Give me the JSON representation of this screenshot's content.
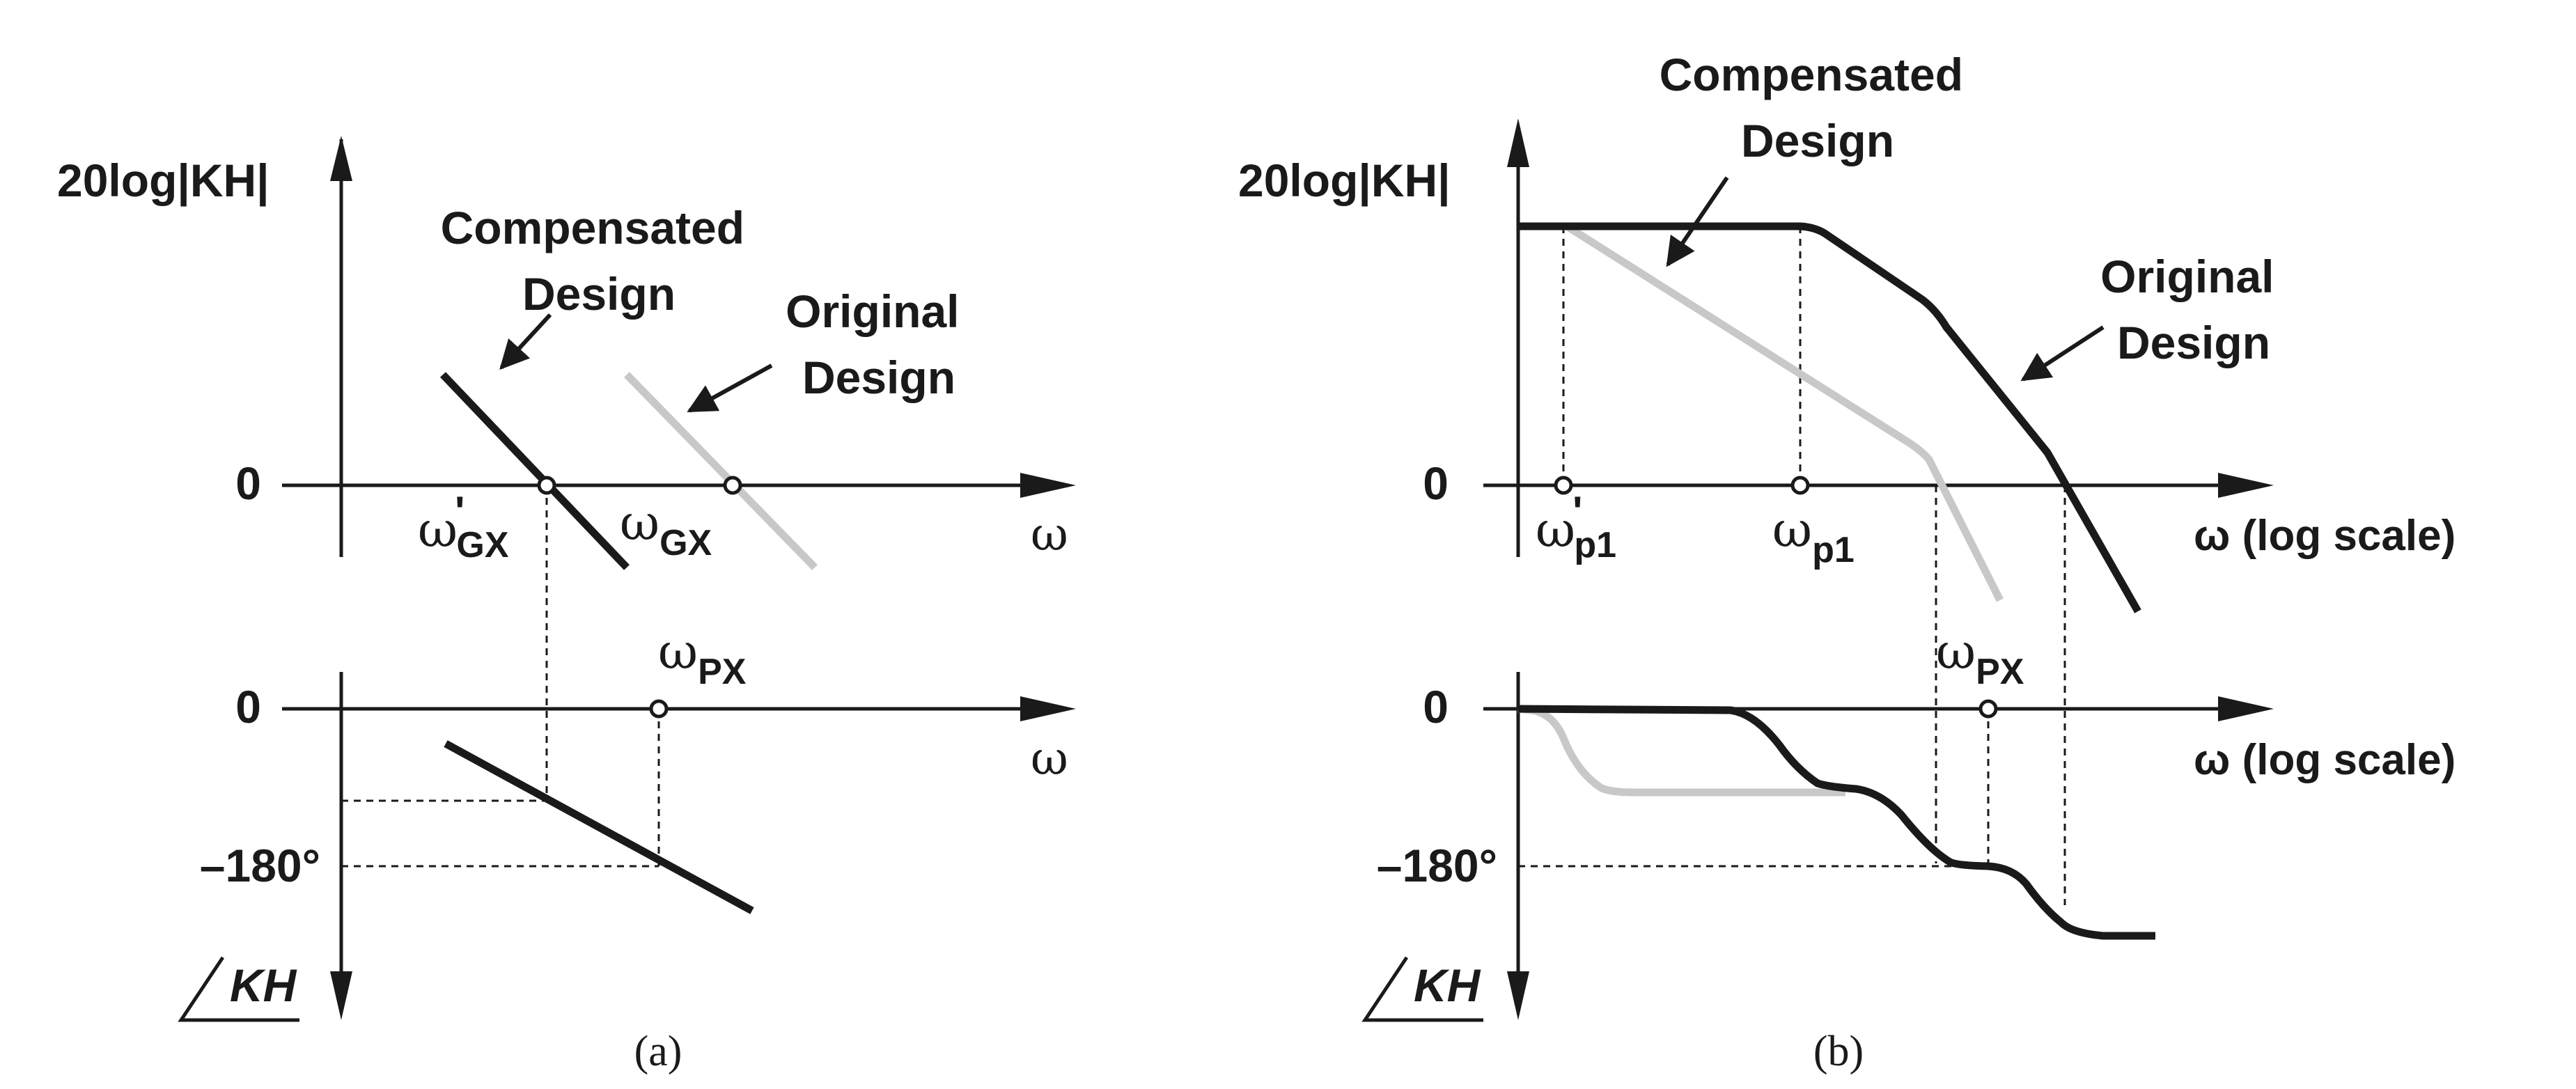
{
  "panel_a": {
    "caption": "(a)",
    "magnitude_ylabel": "20log|KH|",
    "phase_ylabel": "KH",
    "zero_mag": "0",
    "zero_phase": "0",
    "phase_tick": "–180°",
    "x_symbol_top": "ω",
    "x_symbol_bottom": "ω",
    "compensated_label": [
      "Compensated",
      "Design"
    ],
    "original_label": [
      "Original",
      "Design"
    ],
    "wgx_prime": {
      "base": "ω",
      "prime": "'",
      "sub": "GX"
    },
    "wgx": {
      "base": "ω",
      "sub": "GX"
    },
    "wpx": {
      "base": "ω",
      "sub": "PX"
    }
  },
  "panel_b": {
    "caption": "(b)",
    "magnitude_ylabel": "20log|KH|",
    "phase_ylabel": "KH",
    "zero_mag": "0",
    "zero_phase": "0",
    "phase_tick": "–180°",
    "x_label_top": "ω (log scale)",
    "x_label_bottom": "ω (log scale)",
    "compensated_label": [
      "Compensated",
      "Design"
    ],
    "original_label": [
      "Original",
      "Design"
    ],
    "wp1_prime": {
      "base": "ω",
      "prime": "'",
      "sub": "p1"
    },
    "wp1": {
      "base": "ω",
      "sub": "p1"
    },
    "wpx": {
      "base": "ω",
      "sub": "PX"
    }
  },
  "colors": {
    "compensated_curve": "#1a1a1a",
    "original_curve": "#c8c8c8"
  }
}
